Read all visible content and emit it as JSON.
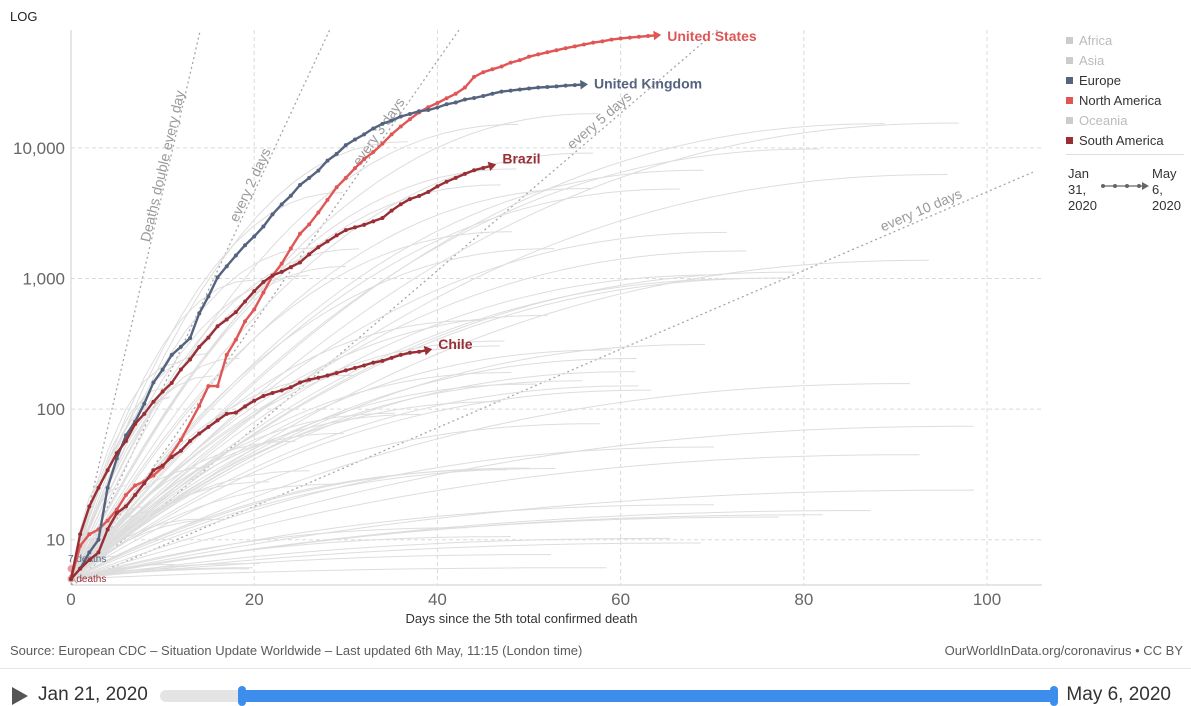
{
  "controls": {
    "scale_label": "LOG",
    "start_date": "Jan 21, 2020",
    "end_date": "May 6, 2020",
    "slider_range_fraction": [
      0.092,
      1.0
    ]
  },
  "legend": {
    "items": [
      {
        "label": "Africa",
        "color": "#cccccc",
        "active": false
      },
      {
        "label": "Asia",
        "color": "#cccccc",
        "active": false
      },
      {
        "label": "Europe",
        "color": "#54637e",
        "active": true
      },
      {
        "label": "North America",
        "color": "#e05656",
        "active": true
      },
      {
        "label": "Oceania",
        "color": "#cccccc",
        "active": false
      },
      {
        "label": "South America",
        "color": "#992e35",
        "active": true
      }
    ],
    "time_start": "Jan 31, 2020",
    "time_end": "May 6, 2020"
  },
  "footer": {
    "source": "Source: European CDC – Situation Update Worldwide – Last updated 6th May, 11:15 (London time)",
    "credit": "OurWorldInData.org/coronavirus • CC BY"
  },
  "chart_data": {
    "type": "line",
    "title": "",
    "xlabel": "Days since the 5th total confirmed death",
    "ylabel": "",
    "xlim": [
      0,
      106
    ],
    "ylim": [
      4.5,
      80000
    ],
    "yscale": "log",
    "xticks": [
      0,
      20,
      40,
      60,
      80,
      100
    ],
    "yticks": [
      10,
      100,
      1000,
      10000
    ],
    "ytick_labels": [
      "10",
      "100",
      "1,000",
      "10,000"
    ],
    "grid": true,
    "annotations": [
      {
        "x": 0,
        "y": 7,
        "text": "7 deaths"
      },
      {
        "x": 0,
        "y": 5,
        "text": "6 deaths"
      }
    ],
    "reference_lines": [
      {
        "label": "Deaths double every day",
        "doubling_days": 1
      },
      {
        "label": "every 2 days",
        "doubling_days": 2
      },
      {
        "label": "every 3 days",
        "doubling_days": 3
      },
      {
        "label": "every 5 days",
        "doubling_days": 5
      },
      {
        "label": "every 10 days",
        "doubling_days": 10
      }
    ],
    "series": [
      {
        "name": "United States",
        "color": "#e05656",
        "x": [
          0,
          1,
          2,
          3,
          4,
          5,
          6,
          7,
          8,
          9,
          10,
          12,
          14,
          15,
          16,
          17,
          18,
          19,
          20,
          21,
          22,
          23,
          24,
          25,
          26,
          27,
          28,
          29,
          30,
          31,
          32,
          33,
          34,
          35,
          36,
          37,
          38,
          39,
          40,
          41,
          42,
          43,
          44,
          45,
          46,
          47,
          48,
          49,
          50,
          51,
          52,
          53,
          54,
          55,
          56,
          57,
          58,
          59,
          60,
          61,
          62,
          63,
          64
        ],
        "y": [
          5,
          9,
          11,
          12,
          14,
          17,
          22,
          26,
          28,
          31,
          36,
          58,
          106,
          150,
          150,
          260,
          340,
          470,
          580,
          780,
          1050,
          1300,
          1700,
          2200,
          2600,
          3200,
          4000,
          5000,
          5900,
          7000,
          8200,
          9300,
          10800,
          12700,
          14600,
          16600,
          18700,
          20500,
          22100,
          24000,
          26000,
          29000,
          35000,
          38000,
          40000,
          42000,
          45000,
          47000,
          50000,
          52000,
          54000,
          56000,
          58000,
          60000,
          62000,
          64000,
          65500,
          67500,
          69000,
          70000,
          71000,
          72000,
          73000
        ]
      },
      {
        "name": "United Kingdom",
        "color": "#54637e",
        "x": [
          0,
          1,
          2,
          3,
          4,
          5,
          6,
          7,
          8,
          9,
          10,
          11,
          12,
          13,
          14,
          15,
          16,
          17,
          18,
          19,
          20,
          21,
          22,
          23,
          24,
          25,
          26,
          27,
          28,
          29,
          30,
          31,
          32,
          33,
          34,
          35,
          36,
          37,
          38,
          39,
          40,
          41,
          42,
          43,
          44,
          45,
          46,
          47,
          48,
          49,
          50,
          51,
          52,
          53,
          54,
          55,
          56
        ],
        "y": [
          5,
          6,
          8,
          10,
          25,
          42,
          63,
          80,
          110,
          160,
          200,
          260,
          300,
          350,
          540,
          730,
          1020,
          1240,
          1500,
          1800,
          2100,
          2500,
          3100,
          3700,
          4300,
          5200,
          5900,
          6700,
          8000,
          9000,
          10500,
          11600,
          12700,
          14100,
          15300,
          16200,
          17400,
          18200,
          19100,
          19500,
          20400,
          21600,
          22300,
          23500,
          24100,
          25000,
          26000,
          27000,
          27500,
          28000,
          28500,
          29000,
          29300,
          29600,
          30000,
          30300,
          30600
        ]
      },
      {
        "name": "Brazil",
        "color": "#992e35",
        "x": [
          0,
          1,
          2,
          3,
          4,
          5,
          6,
          7,
          8,
          9,
          10,
          11,
          12,
          13,
          14,
          15,
          16,
          17,
          18,
          19,
          20,
          21,
          22,
          23,
          24,
          25,
          26,
          27,
          28,
          29,
          30,
          31,
          32,
          33,
          34,
          35,
          36,
          37,
          38,
          39,
          40,
          41,
          42,
          43,
          44,
          45,
          46
        ],
        "y": [
          5,
          11,
          18,
          25,
          34,
          46,
          57,
          77,
          92,
          114,
          136,
          159,
          201,
          240,
          299,
          353,
          431,
          486,
          553,
          667,
          800,
          941,
          1056,
          1124,
          1223,
          1328,
          1532,
          1736,
          1924,
          2141,
          2347,
          2462,
          2575,
          2741,
          2906,
          3313,
          3704,
          4057,
          4286,
          4603,
          5083,
          5513,
          5901,
          6329,
          6750,
          7025,
          7343
        ]
      },
      {
        "name": "Chile",
        "color": "#992e35",
        "x": [
          0,
          1,
          2,
          3,
          4,
          5,
          6,
          7,
          8,
          9,
          10,
          11,
          12,
          13,
          14,
          15,
          16,
          17,
          18,
          19,
          20,
          21,
          22,
          23,
          24,
          25,
          26,
          27,
          28,
          29,
          30,
          31,
          32,
          33,
          34,
          35,
          36,
          37,
          38,
          39
        ],
        "y": [
          5,
          6,
          7,
          8,
          12,
          16,
          18,
          22,
          27,
          34,
          37,
          43,
          48,
          57,
          65,
          73,
          82,
          92,
          94,
          105,
          116,
          126,
          133,
          139,
          147,
          160,
          168,
          174,
          181,
          189,
          198,
          207,
          216,
          227,
          234,
          247,
          260,
          270,
          275,
          284
        ]
      }
    ]
  }
}
